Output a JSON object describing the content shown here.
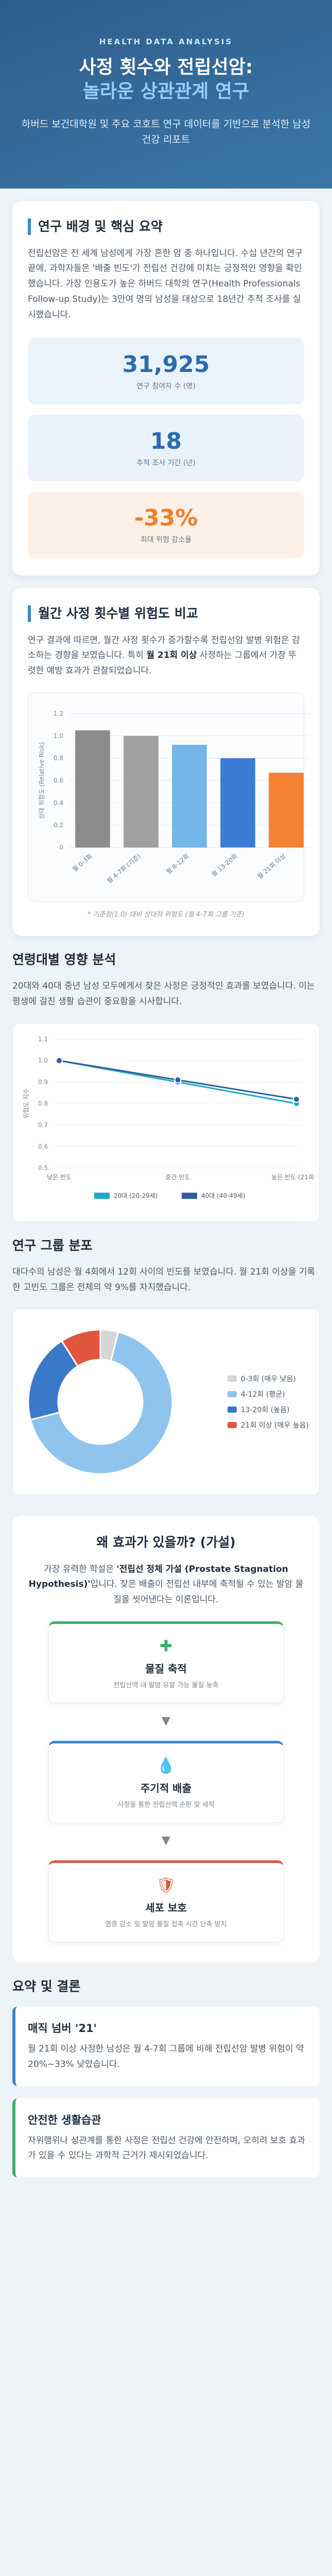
{
  "hero": {
    "kicker": "HEALTH DATA ANALYSIS",
    "title_line1": "사정 횟수와 전립선암:",
    "title_line2": "놀라운 상관관계 연구",
    "subtitle": "하버드 보건대학원 및 주요 코호트 연구 데이터를 기반으로 분석한 남성 건강 리포트"
  },
  "background": {
    "title": "연구 배경 및 핵심 요약",
    "body": "전립선암은 전 세계 남성에게 가장 흔한 암 중 하나입니다. 수십 년간의 연구 끝에, 과학자들은 '배출 빈도'가 전립선 건강에 미치는 긍정적인 영향을 확인했습니다. 가장 인용도가 높은 하버드 대학의 연구(Health Professionals Follow-up Study)는 3만여 명의 남성을 대상으로 18년간 추적 조사를 실시했습니다.",
    "stats": [
      {
        "value": "31,925",
        "label": "연구 참여자 수 (명)"
      },
      {
        "value": "18",
        "label": "추적 조사 기간 (년)"
      },
      {
        "value": "-33%",
        "label": "최대 위험 감소율"
      }
    ]
  },
  "risk": {
    "title": "월간 사정 횟수별 위험도 비교",
    "body_pre": "연구 결과에 따르면, 월간 사정 횟수가 증가할수록 전립선암 발병 위험은 감소하는 경향을 보였습니다. 특히 ",
    "body_bold": "월 21회 이상",
    "body_post": " 사정하는 그룹에서 가장 뚜렷한 예방 효과가 관찰되었습니다.",
    "note": "* 기준점(1.0) 대비 상대적 위험도 (월 4-7회 그룹 기준)"
  },
  "chart_risk": {
    "type": "bar",
    "categories": [
      "월 0-3회",
      "월 4-7회 (기준)",
      "월 8-12회",
      "월 13-20회",
      "월 21회 이상"
    ],
    "values": [
      1.05,
      1.0,
      0.92,
      0.8,
      0.67
    ],
    "colors": [
      "#8c8c8c",
      "#a0a0a0",
      "#74b5e8",
      "#3b7cd6",
      "#f58231"
    ],
    "ylabel": "상대 위험도 (Relative Risk)",
    "ylim": [
      0,
      1.2
    ],
    "yticks": [
      "0",
      "0.2",
      "0.4",
      "0.6",
      "0.8",
      "1.0",
      "1.2"
    ]
  },
  "age": {
    "title": "연령대별 영향 분석",
    "body": "20대와 40대 중년 남성 모두에게서 찾은 사정은 긍정적인 효과를 보였습니다. 이는 평생에 걸친 생활 습관이 중요함을 시사합니다."
  },
  "chart_age": {
    "type": "line",
    "categories": [
      "낮은 빈도",
      "중간 빈도",
      "높은 빈도 (21회+)"
    ],
    "ylabel": "위험도 지수",
    "ylim": [
      0.5,
      1.1
    ],
    "yticks": [
      "0.5",
      "0.6",
      "0.7",
      "0.8",
      "0.9",
      "1.0",
      "1.1"
    ],
    "series": [
      {
        "name": "20대 (20-29세)",
        "values": [
          1.0,
          0.9,
          0.8
        ],
        "color": "#20a9c2"
      },
      {
        "name": "40대 (40-49세)",
        "values": [
          1.0,
          0.91,
          0.82
        ],
        "color": "#2f5f9e"
      }
    ]
  },
  "dist": {
    "title": "연구 그룹 분포",
    "body": "대다수의 남성은 월 4회에서 12회 사이의 빈도를 보였습니다. 월 21회 이상을 기록한 고빈도 그룹은 전체의 약 9%를 차지했습니다."
  },
  "chart_dist": {
    "type": "pie",
    "labels": [
      "0-3회 (매우 낮음)",
      "4-12회 (평균)",
      "13-20회 (높음)",
      "21회 이상 (매우 높음)"
    ],
    "values": [
      4,
      67,
      20,
      9
    ],
    "colors": [
      "#d6d6d6",
      "#8fc4ef",
      "#3a78c9",
      "#e2553f"
    ]
  },
  "why": {
    "title": "왜 효과가 있을까? (가설)",
    "body_pre": "가장 유력한 학설은 ",
    "body_bold": "'전립선 정체 가설 (Prostate Stagnation Hypothesis)'",
    "body_post": "입니다. 잦은 배출이 전립선 내부에 축적될 수 있는 발암 물질을 씻어낸다는 이론입니다.",
    "steps": [
      {
        "icon": "✚",
        "title": "물질 축적",
        "desc": "전립선액 내 발암 유발 가능 물질 농축"
      },
      {
        "icon": "💧",
        "title": "주기적 배출",
        "desc": "사정을 통한 전립선액 순환 및 세척"
      },
      {
        "icon": "🛡",
        "title": "세포 보호",
        "desc": "염증 감소 및 발암 물질 접촉 시간 단축 방지"
      }
    ]
  },
  "summary": {
    "title": "요약 및 결론",
    "items": [
      {
        "title": "매직 넘버 '21'",
        "body": "월 21회 이상 사정한 남성은 월 4-7회 그룹에 비해 전립선암 발병 위험이 약 20%~33% 낮았습니다."
      },
      {
        "title": "안전한 생활습관",
        "body": "자위행위나 성관계를 통한 사정은 전립선 건강에 안전하며, 오히려 보호 효과가 있을 수 있다는 과학적 근거가 제시되었습니다."
      }
    ]
  }
}
